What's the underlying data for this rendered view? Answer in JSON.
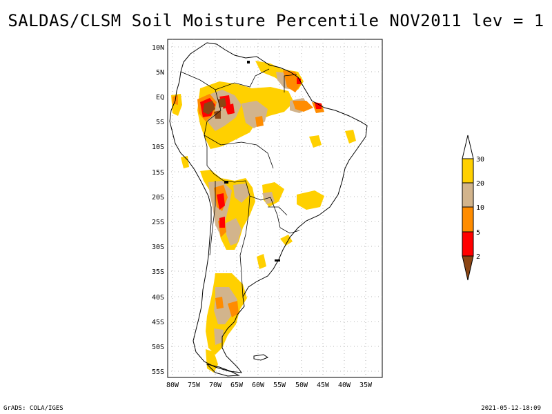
{
  "title": "SALDAS/CLSM Soil Moisture Percentile NOV2011 lev = 1",
  "map": {
    "lat_labels": [
      "10N",
      "5N",
      "EQ",
      "5S",
      "10S",
      "15S",
      "20S",
      "25S",
      "30S",
      "35S",
      "40S",
      "45S",
      "50S",
      "55S"
    ],
    "lon_labels": [
      "80W",
      "75W",
      "70W",
      "65W",
      "60W",
      "55W",
      "50W",
      "45W",
      "40W",
      "35W"
    ]
  },
  "colorbar": {
    "labels": [
      "30",
      "20",
      "10",
      "5",
      "2"
    ],
    "colors": {
      "top": "#ffffff",
      "c20_30": "#ffd000",
      "c10_20": "#d2b48c",
      "c5_10": "#ff8c00",
      "c2_5": "#ff0000",
      "c0_2": "#8b4513"
    }
  },
  "footer": {
    "credit": "GrADS: COLA/IGES",
    "timestamp": "2021-05-12-18:09"
  }
}
